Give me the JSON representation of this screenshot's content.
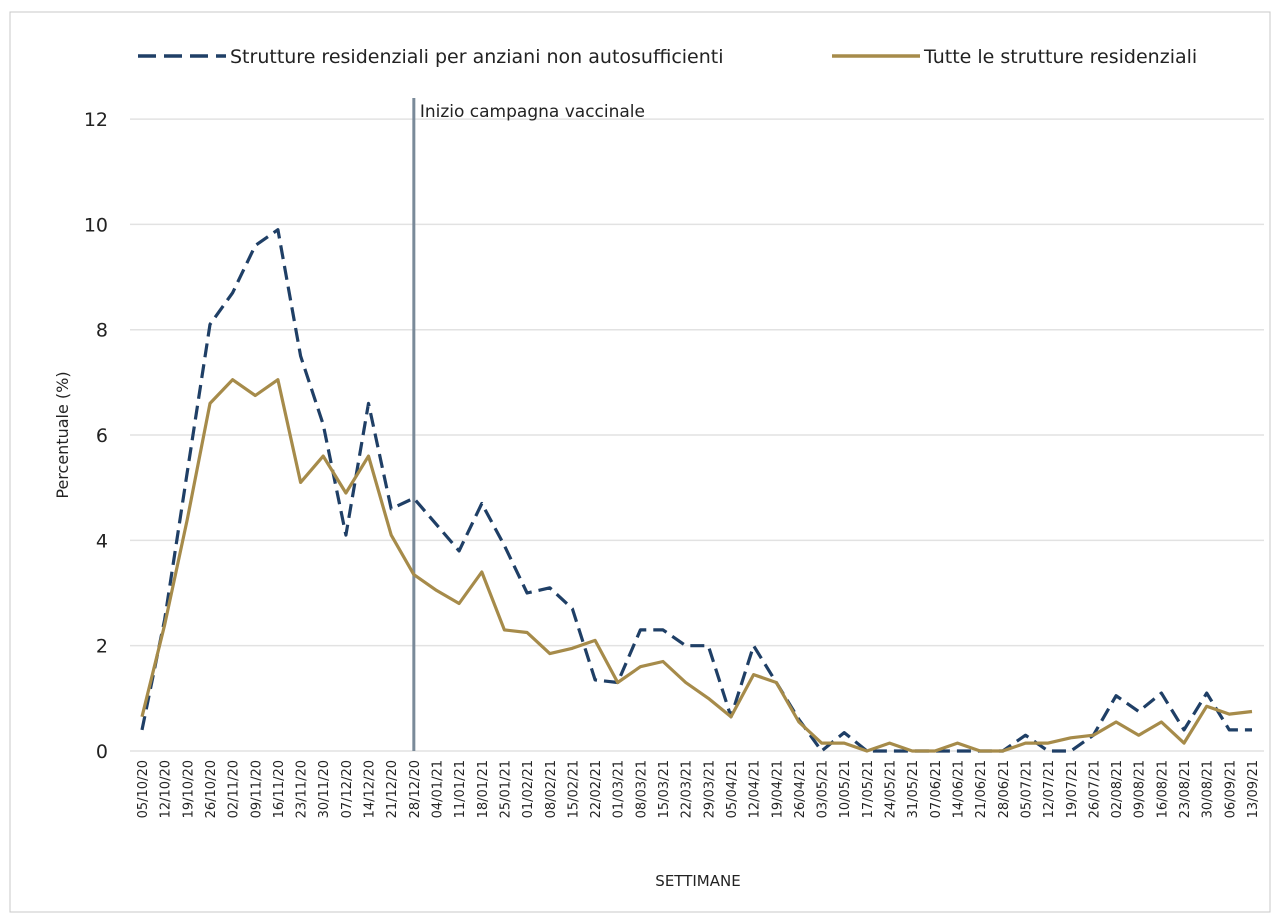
{
  "chart_data": {
    "type": "line",
    "x_label": "SETTIMANE",
    "y_label": "Percentuale (%)",
    "categories": [
      "05/10/20",
      "12/10/20",
      "19/10/20",
      "26/10/20",
      "02/11/20",
      "09/11/20",
      "16/11/20",
      "23/11/20",
      "30/11/20",
      "07/12/20",
      "14/12/20",
      "21/12/20",
      "28/12/20",
      "04/01/21",
      "11/01/21",
      "18/01/21",
      "25/01/21",
      "01/02/21",
      "08/02/21",
      "15/02/21",
      "22/02/21",
      "01/03/21",
      "08/03/21",
      "15/03/21",
      "22/03/21",
      "29/03/21",
      "05/04/21",
      "12/04/21",
      "19/04/21",
      "26/04/21",
      "03/05/21",
      "10/05/21",
      "17/05/21",
      "24/05/21",
      "31/05/21",
      "07/06/21",
      "14/06/21",
      "21/06/21",
      "28/06/21",
      "05/07/21",
      "12/07/21",
      "19/07/21",
      "26/07/21",
      "02/08/21",
      "09/08/21",
      "16/08/21",
      "23/08/21",
      "30/08/21",
      "06/09/21",
      "13/09/21"
    ],
    "series": [
      {
        "name": "Strutture residenziali per anziani non autosufficienti",
        "color": "#1f3f66",
        "line_style": "dashed",
        "values": [
          0.4,
          2.5,
          5.3,
          8.1,
          8.7,
          9.6,
          9.9,
          7.5,
          6.2,
          4.1,
          6.6,
          4.6,
          4.8,
          4.3,
          3.8,
          4.7,
          3.9,
          3.0,
          3.1,
          2.7,
          1.35,
          1.3,
          2.3,
          2.3,
          2.0,
          2.0,
          0.65,
          2.0,
          1.3,
          0.6,
          0,
          0.35,
          0,
          0,
          0,
          0,
          0,
          0,
          0,
          0.3,
          0,
          0,
          0.3,
          1.05,
          0.75,
          1.1,
          0.4,
          1.1,
          0.4,
          0.4
        ]
      },
      {
        "name": "Tutte le strutture residenziali",
        "color": "#a68b4a",
        "line_style": "solid",
        "values": [
          0.65,
          2.4,
          4.4,
          6.6,
          7.05,
          6.75,
          7.05,
          5.1,
          5.6,
          4.9,
          5.6,
          4.1,
          3.35,
          3.05,
          2.8,
          3.4,
          2.3,
          2.25,
          1.85,
          1.95,
          2.1,
          1.3,
          1.6,
          1.7,
          1.3,
          1.0,
          0.65,
          1.45,
          1.3,
          0.55,
          0.15,
          0.15,
          0,
          0.15,
          0,
          0,
          0.15,
          0,
          0,
          0.15,
          0.15,
          0.25,
          0.3,
          0.55,
          0.3,
          0.55,
          0.15,
          0.85,
          0.7,
          0.75
        ]
      }
    ],
    "ylim": [
      0,
      12.4
    ],
    "yticks": [
      0,
      2,
      4,
      6,
      8,
      10,
      12
    ],
    "grid": true,
    "annotations": [
      {
        "text": "Inizio campagna vaccinale",
        "x": "28/12/20",
        "color": "#7a8a99"
      }
    ]
  }
}
